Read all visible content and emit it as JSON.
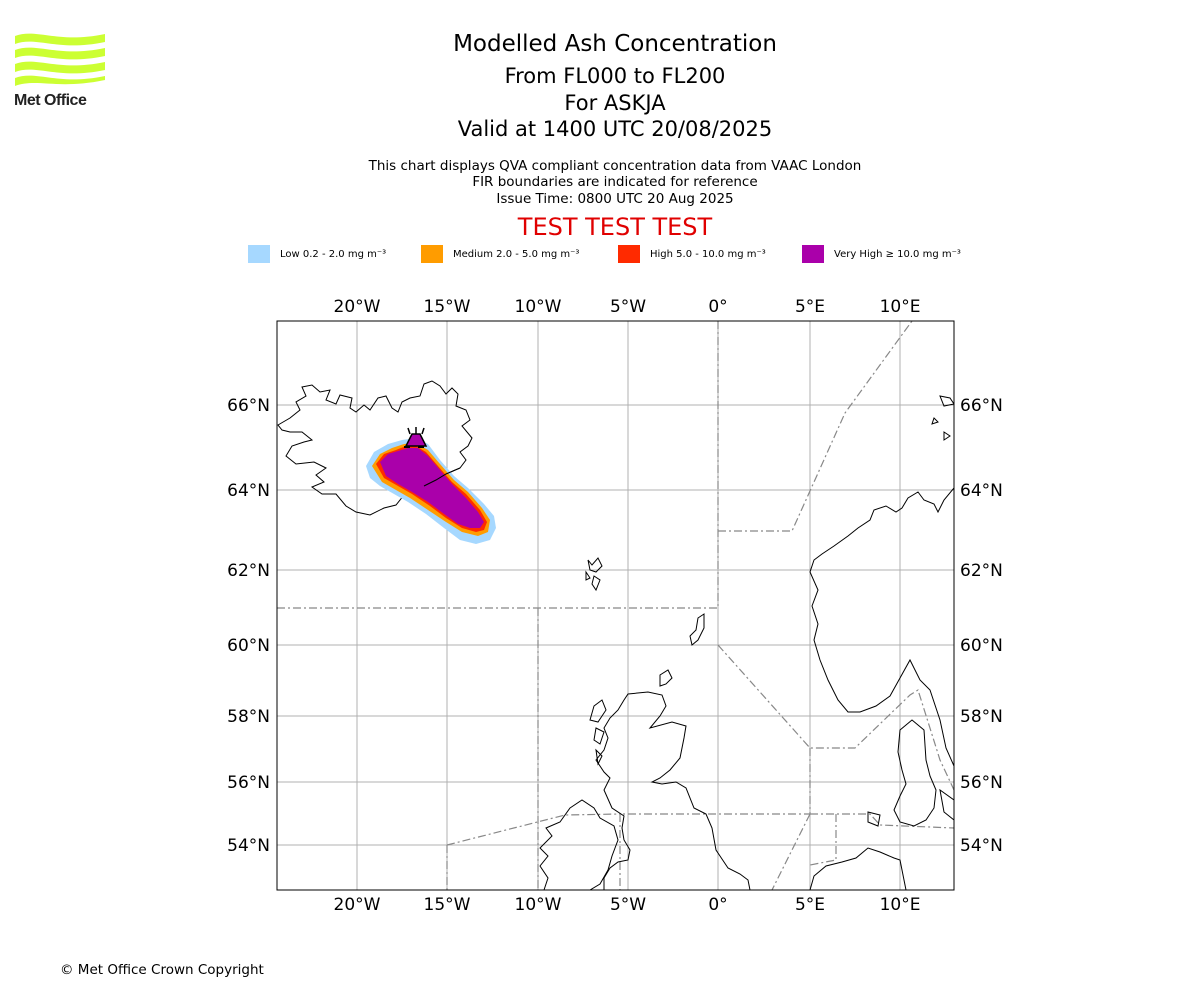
{
  "logo": {
    "text": "Met Office",
    "icon": "met-office-wave-logo",
    "color": "#ccff33"
  },
  "title": {
    "main": "Modelled Ash Concentration",
    "levels": "From FL000 to FL200",
    "volcano": "For ASKJA",
    "valid": "Valid at 1400 UTC 20/08/2025"
  },
  "subtitle": {
    "line1": "This chart displays QVA compliant concentration data from VAAC London",
    "line2": "FIR boundaries are indicated for reference",
    "line3": "Issue Time: 0800 UTC 20 Aug 2025"
  },
  "test_banner": "TEST TEST TEST",
  "legend": [
    {
      "label": "Low 0.2 - 2.0 mg m⁻³",
      "color": "#a6d8ff"
    },
    {
      "label": "Medium 2.0 - 5.0 mg m⁻³",
      "color": "#ff9c00"
    },
    {
      "label": "High 5.0 - 10.0 mg m⁻³",
      "color": "#ff2a00"
    },
    {
      "label": "Very High ≥ 10.0 mg m⁻³",
      "color": "#aa00aa"
    }
  ],
  "map": {
    "lon_ticks": [
      "20°W",
      "15°W",
      "10°W",
      "5°W",
      "0°",
      "5°E",
      "10°E"
    ],
    "lat_ticks": [
      "66°N",
      "64°N",
      "62°N",
      "60°N",
      "58°N",
      "56°N",
      "54°N"
    ],
    "volcano_icon": "volcano-icon"
  },
  "copyright": "© Met Office Crown Copyright"
}
